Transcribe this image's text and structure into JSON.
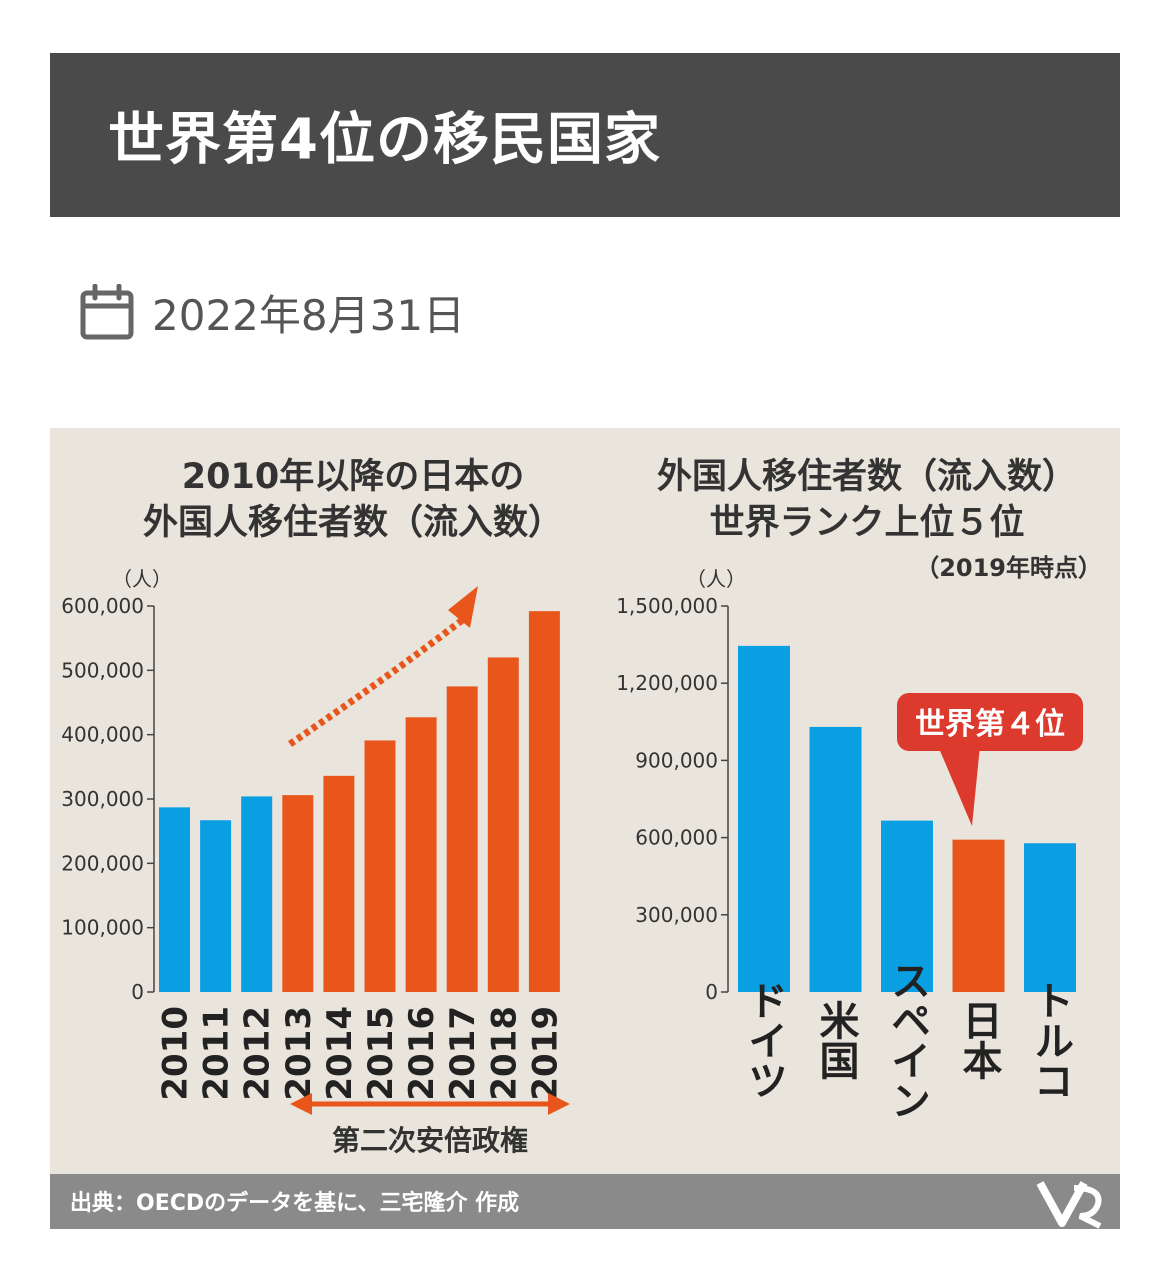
{
  "page": {
    "title": "世界第4位の移民国家",
    "date": "2022年8月31日",
    "date_icon": "calendar-icon"
  },
  "colors": {
    "header_bg": "#4a4a4a",
    "chart_bg": "#e9e5dc",
    "blue": "#0a9ee3",
    "orange": "#e8561c",
    "red_callout": "#dd3a2e",
    "source_bar": "#8a8a8a"
  },
  "chart_data": [
    {
      "type": "bar",
      "title": "2010年以降の日本の外国人移住者数（流入数）",
      "title_lines": [
        "2010年以降の日本の",
        "外国人移住者数（流入数）"
      ],
      "unit": "（人）",
      "categories": [
        "2010",
        "2011",
        "2012",
        "2013",
        "2014",
        "2015",
        "2016",
        "2017",
        "2018",
        "2019"
      ],
      "values": [
        287000,
        267000,
        304000,
        306000,
        336000,
        391000,
        427000,
        475000,
        520000,
        592000
      ],
      "bar_colors": [
        "blue",
        "blue",
        "blue",
        "orange",
        "orange",
        "orange",
        "orange",
        "orange",
        "orange",
        "orange"
      ],
      "ylim": [
        0,
        600000
      ],
      "yticks": [
        "0",
        "100,000",
        "200,000",
        "300,000",
        "400,000",
        "500,000",
        "600,000"
      ],
      "annotation": "第二次安倍政権",
      "annotation_range": [
        "2013",
        "2019"
      ],
      "grid": false
    },
    {
      "type": "bar",
      "title": "外国人移住者数（流入数）世界ランク上位５位",
      "title_lines": [
        "外国人移住者数（流入数）",
        "世界ランク上位５位"
      ],
      "subtitle": "（2019年時点）",
      "unit": "（人）",
      "categories": [
        "ドイツ",
        "米国",
        "スペイン",
        "日本",
        "トルコ"
      ],
      "values": [
        1345000,
        1030000,
        666000,
        592000,
        578000
      ],
      "bar_colors": [
        "blue",
        "blue",
        "blue",
        "orange",
        "blue"
      ],
      "ylim": [
        0,
        1500000
      ],
      "yticks": [
        "0",
        "300,000",
        "600,000",
        "900,000",
        "1,200,000",
        "1,500,000"
      ],
      "callout": "世界第４位",
      "callout_target": "日本",
      "grid": false
    }
  ],
  "source": "出典：OECDのデータを基に、三宅隆介 作成"
}
